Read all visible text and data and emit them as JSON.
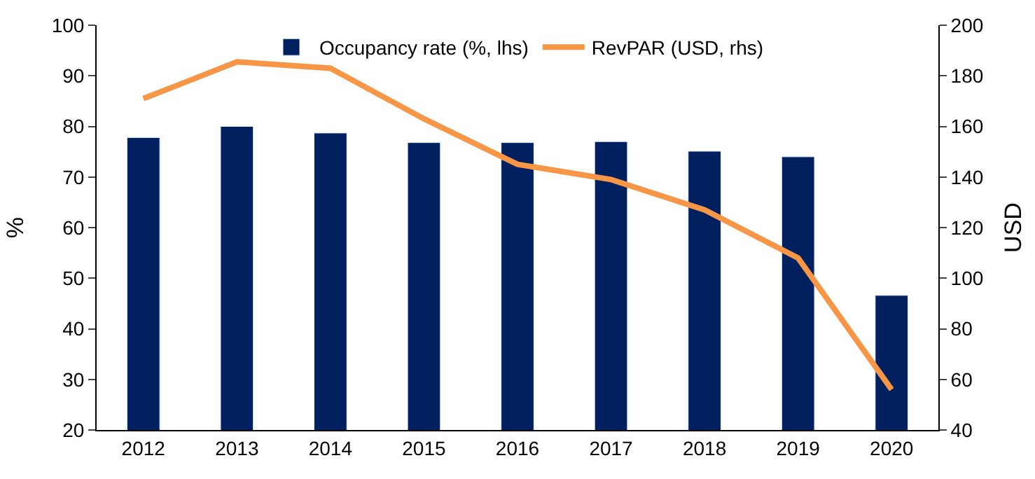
{
  "chart_data": {
    "type": "bar",
    "categories": [
      "2012",
      "2013",
      "2014",
      "2015",
      "2016",
      "2017",
      "2018",
      "2019",
      "2020"
    ],
    "series": [
      {
        "name": "Occupancy rate (%, lhs)",
        "color": "#002060",
        "values": [
          77.8,
          80,
          78.7,
          76.8,
          76.8,
          77,
          75.1,
          74,
          46.6
        ]
      },
      {
        "name": "RevPAR (USD, rhs)",
        "color": "#f79646",
        "type": "line",
        "axis": "y2",
        "values": [
          171,
          185.5,
          183,
          163,
          145,
          139,
          127,
          108,
          56
        ]
      }
    ],
    "ylabel": "%",
    "y2label": "USD",
    "ylim": [
      20,
      100
    ],
    "yticks": [
      20,
      30,
      40,
      50,
      60,
      70,
      80,
      90,
      100
    ],
    "y2lim": [
      40,
      200
    ],
    "y2ticks": [
      40,
      60,
      80,
      100,
      120,
      140,
      160,
      180,
      200
    ],
    "grid": false,
    "legend": "top",
    "marker": "none",
    "line_style": "solid"
  }
}
